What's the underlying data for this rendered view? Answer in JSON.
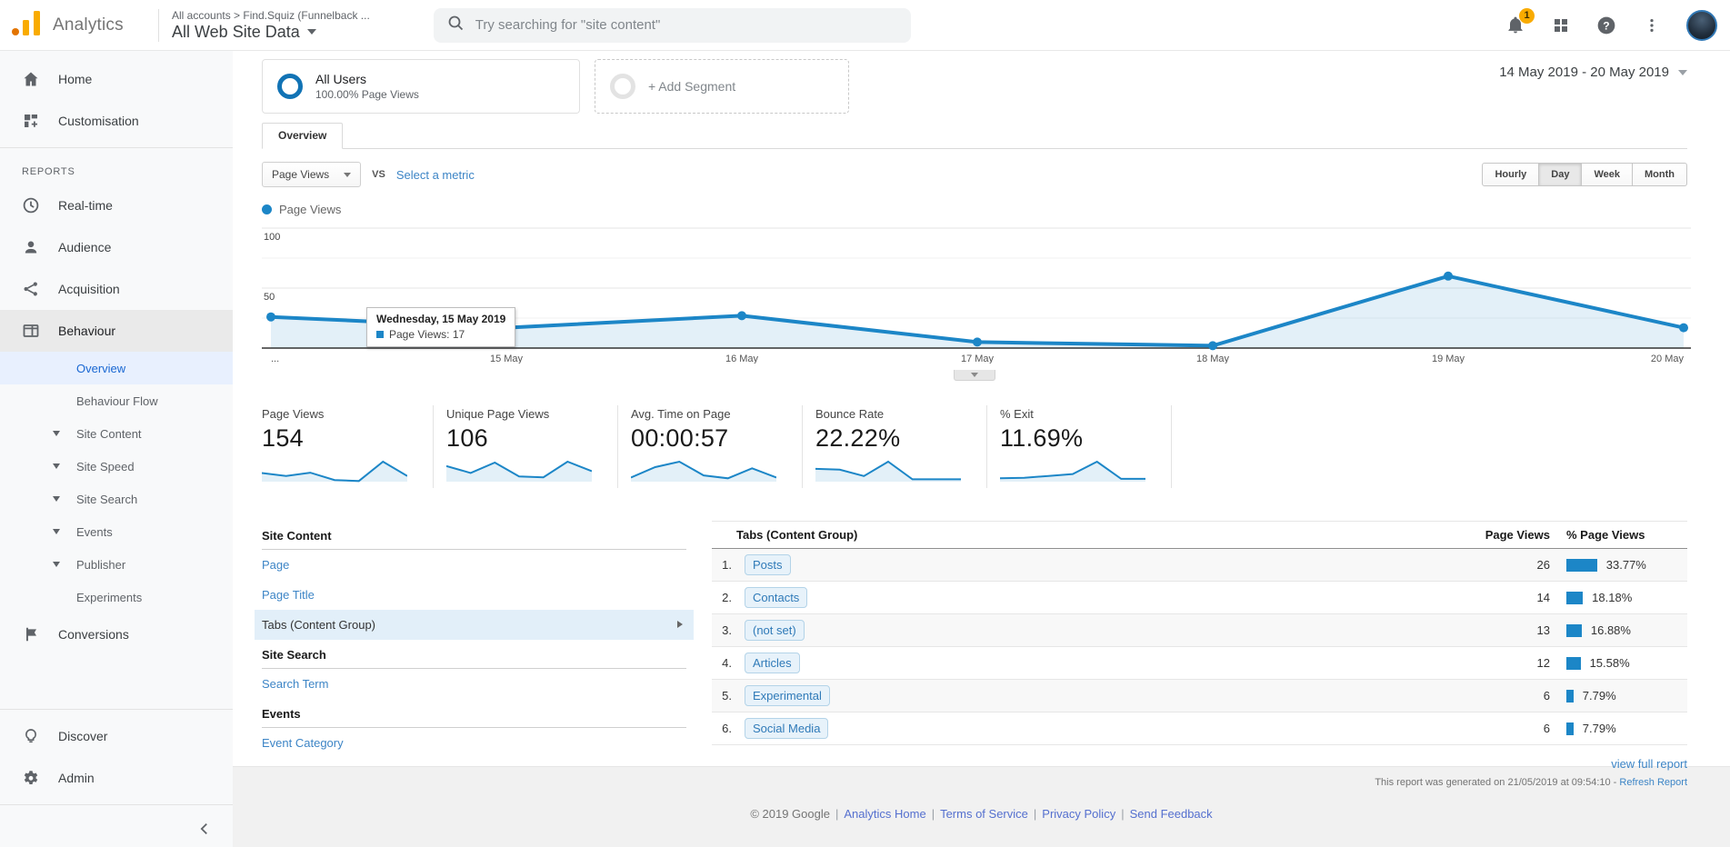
{
  "header": {
    "brand": "Analytics",
    "breadcrumb": "All accounts > Find.Squiz (Funnelback ...",
    "property": "All Web Site Data",
    "search_placeholder": "Try searching for \"site content\"",
    "notification_count": "1"
  },
  "sidebar": {
    "items": [
      {
        "type": "parent",
        "icon": "home-icon",
        "label": "Home"
      },
      {
        "type": "parent",
        "icon": "customisation-icon",
        "label": "Customisation"
      },
      {
        "type": "divider"
      },
      {
        "type": "section",
        "label": "REPORTS"
      },
      {
        "type": "parent",
        "icon": "realtime-icon",
        "label": "Real-time"
      },
      {
        "type": "parent",
        "icon": "audience-icon",
        "label": "Audience"
      },
      {
        "type": "parent",
        "icon": "acquisition-icon",
        "label": "Acquisition"
      },
      {
        "type": "parent",
        "icon": "behaviour-icon",
        "label": "Behaviour",
        "active": true
      },
      {
        "type": "child",
        "label": "Overview",
        "selected": true
      },
      {
        "type": "child",
        "label": "Behaviour Flow"
      },
      {
        "type": "child",
        "label": "Site Content",
        "arrow": true
      },
      {
        "type": "child",
        "label": "Site Speed",
        "arrow": true
      },
      {
        "type": "child",
        "label": "Site Search",
        "arrow": true
      },
      {
        "type": "child",
        "label": "Events",
        "arrow": true
      },
      {
        "type": "child",
        "label": "Publisher",
        "arrow": true
      },
      {
        "type": "child",
        "label": "Experiments"
      },
      {
        "type": "parent",
        "icon": "conversions-icon",
        "label": "Conversions"
      },
      {
        "type": "spacer"
      },
      {
        "type": "divider"
      },
      {
        "type": "parent",
        "icon": "discover-icon",
        "label": "Discover"
      },
      {
        "type": "parent",
        "icon": "admin-icon",
        "label": "Admin"
      }
    ]
  },
  "segments": {
    "all_users_title": "All Users",
    "all_users_sub": "100.00% Page Views",
    "add_segment": "+ Add Segment",
    "date_range": "14 May 2019 - 20 May 2019"
  },
  "tabs": {
    "overview": "Overview"
  },
  "controls": {
    "metric_select": "Page Views",
    "vs": "VS",
    "select_metric": "Select a metric",
    "granularity": [
      "Hourly",
      "Day",
      "Week",
      "Month"
    ],
    "granularity_active": "Day"
  },
  "chart_data": {
    "type": "line",
    "title": "Page Views",
    "legend": "Page Views",
    "x_labels": [
      "...",
      "15 May",
      "16 May",
      "17 May",
      "18 May",
      "19 May",
      "20 May"
    ],
    "x_dates": [
      "14 May",
      "15 May",
      "16 May",
      "17 May",
      "18 May",
      "19 May",
      "20 May"
    ],
    "series": [
      {
        "name": "Page Views",
        "values": [
          26,
          17,
          27,
          5,
          2,
          60,
          17
        ]
      }
    ],
    "ylim": [
      0,
      100
    ],
    "ytick_interval": 25,
    "ytick_labels": [
      50,
      100
    ],
    "grid": true,
    "tooltip_point_index": 1
  },
  "tooltip": {
    "title": "Wednesday, 15 May 2019",
    "metric_line": "Page Views: 17"
  },
  "metrics": [
    {
      "label": "Page Views",
      "value": "154",
      "spark": [
        26,
        17,
        27,
        5,
        2,
        60,
        17
      ]
    },
    {
      "label": "Unique Page Views",
      "value": "106",
      "spark": [
        18,
        10,
        22,
        6,
        5,
        23,
        12
      ]
    },
    {
      "label": "Avg. Time on Page",
      "value": "00:00:57",
      "spark": [
        10,
        35,
        48,
        15,
        8,
        32,
        10
      ]
    },
    {
      "label": "Bounce Rate",
      "value": "22.22%",
      "spark": [
        32,
        30,
        14,
        50,
        6,
        6,
        6
      ]
    },
    {
      "label": "% Exit",
      "value": "11.69%",
      "spark": [
        7,
        8,
        12,
        16,
        42,
        6,
        6
      ]
    }
  ],
  "dimension_panel": {
    "groups": [
      {
        "header": "Site Content",
        "items": [
          {
            "label": "Page"
          },
          {
            "label": "Page Title"
          },
          {
            "label": "Tabs (Content Group)",
            "selected": true
          }
        ]
      },
      {
        "header": "Site Search",
        "items": [
          {
            "label": "Search Term"
          }
        ]
      },
      {
        "header": "Events",
        "items": [
          {
            "label": "Event Category"
          }
        ]
      }
    ]
  },
  "table": {
    "dim_header": "Tabs (Content Group)",
    "col_views": "Page Views",
    "col_pct": "% Page Views",
    "rows": [
      {
        "rank": "1.",
        "label": "Posts",
        "views": "26",
        "pct": "33.77%",
        "pct_val": 33.77
      },
      {
        "rank": "2.",
        "label": "Contacts",
        "views": "14",
        "pct": "18.18%",
        "pct_val": 18.18
      },
      {
        "rank": "3.",
        "label": "(not set)",
        "views": "13",
        "pct": "16.88%",
        "pct_val": 16.88
      },
      {
        "rank": "4.",
        "label": "Articles",
        "views": "12",
        "pct": "15.58%",
        "pct_val": 15.58
      },
      {
        "rank": "5.",
        "label": "Experimental",
        "views": "6",
        "pct": "7.79%",
        "pct_val": 7.79
      },
      {
        "rank": "6.",
        "label": "Social Media",
        "views": "6",
        "pct": "7.79%",
        "pct_val": 7.79
      }
    ],
    "view_full_report": "view full report"
  },
  "footer": {
    "generated_prefix": "This report was generated on 21/05/2019 at 09:54:10 - ",
    "refresh": "Refresh Report",
    "copyright": "© 2019 Google",
    "links": [
      "Analytics Home",
      "Terms of Service",
      "Privacy Policy",
      "Send Feedback"
    ]
  },
  "colors": {
    "chart_blue": "#1c86c7",
    "chart_fill": "rgba(28,134,199,0.12)",
    "link_blue": "#3d85c6",
    "selected_blue": "#1967d2",
    "badge_orange": "#f9ab00"
  }
}
